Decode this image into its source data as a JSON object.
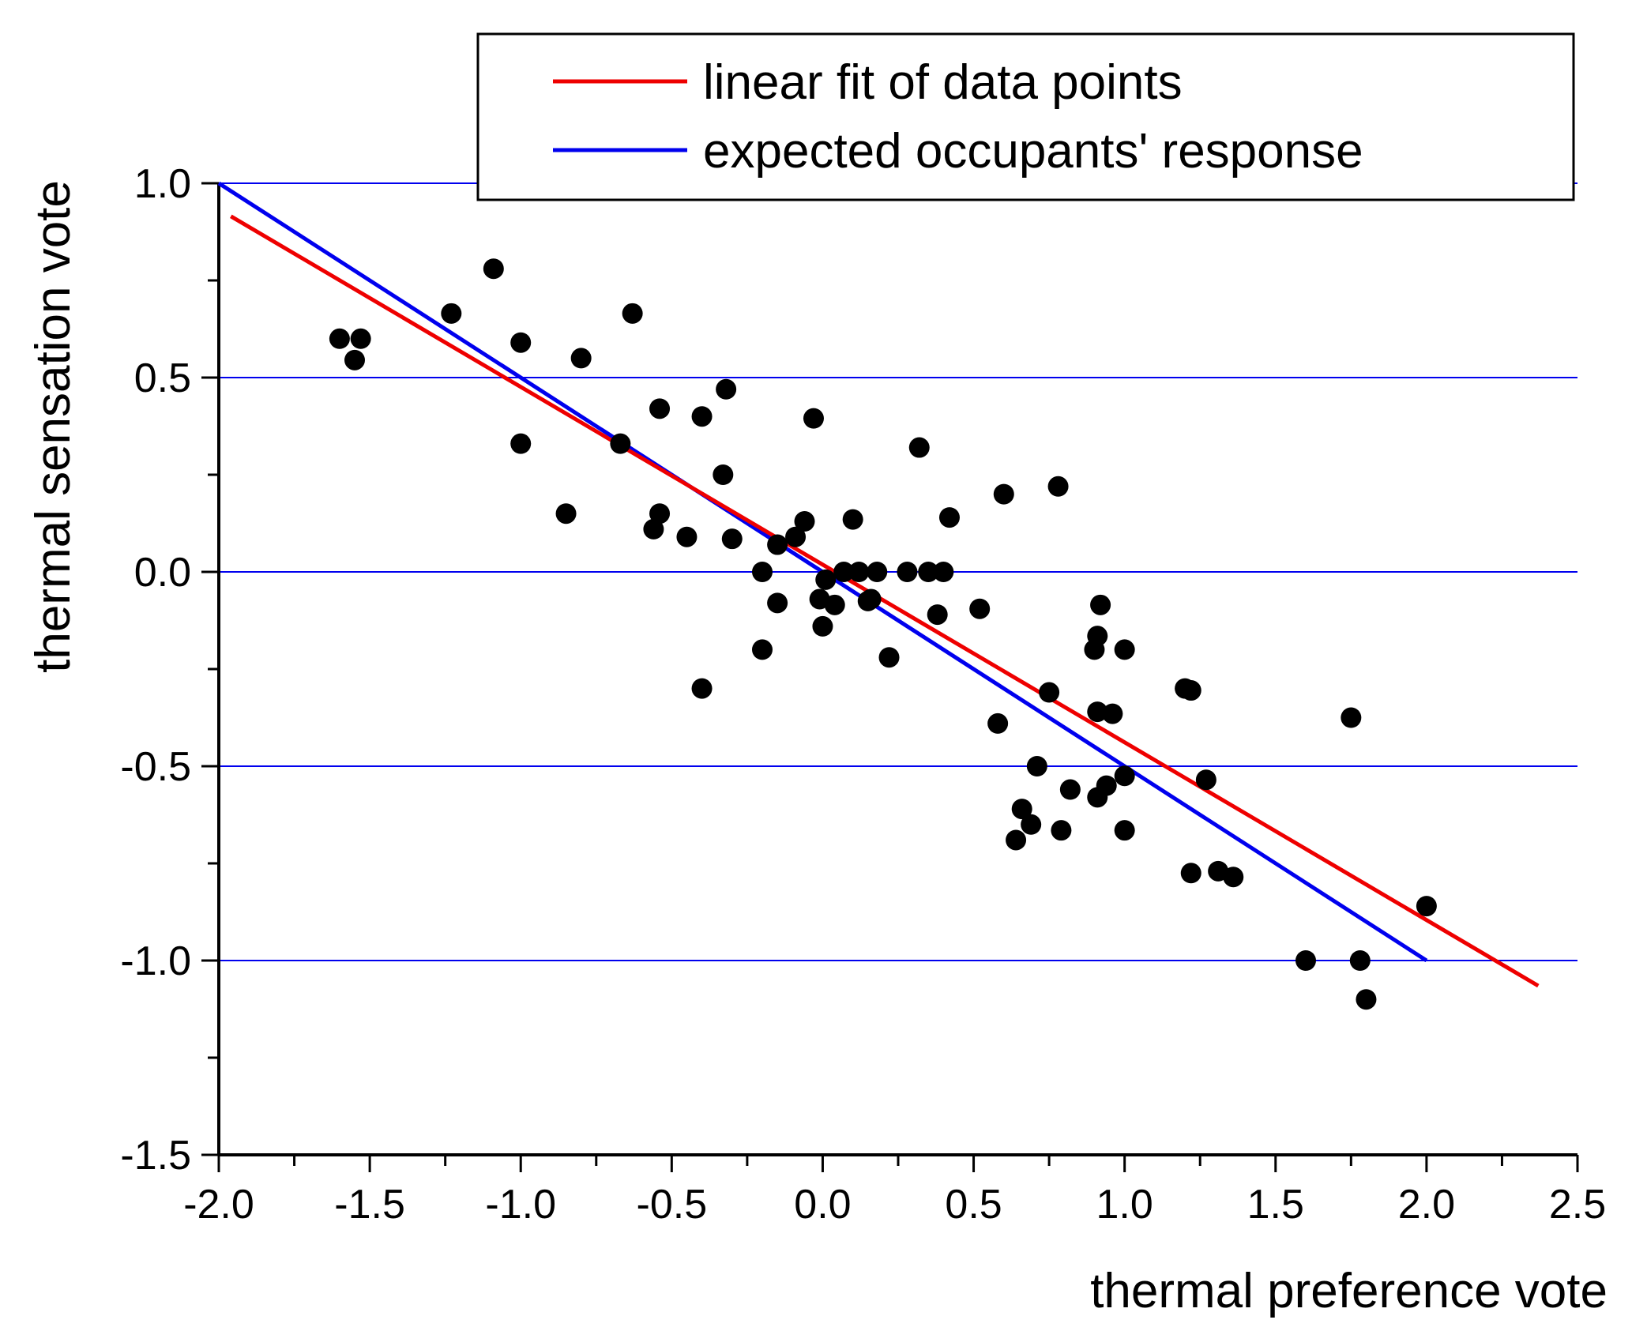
{
  "chart_data": {
    "type": "scatter",
    "xlabel": "thermal preference vote",
    "ylabel": "thermal sensation vote",
    "xlim": [
      -2.0,
      2.5
    ],
    "ylim": [
      -1.5,
      1.0
    ],
    "x_ticks": [
      "-2.0",
      "-1.5",
      "-1.0",
      "-0.5",
      "0.0",
      "0.5",
      "1.0",
      "1.5",
      "2.0",
      "2.5"
    ],
    "y_ticks": [
      "1.0",
      "0.5",
      "0.0",
      "-0.5",
      "-1.0",
      "-1.5"
    ],
    "gridlines_y": [
      1.0,
      0.5,
      0.0,
      -0.5,
      -1.0
    ],
    "grid_color": "#0000ee",
    "legend_position": "top-right",
    "series": [
      {
        "name": "data points",
        "kind": "scatter",
        "color": "#000000",
        "x": [
          -1.6,
          -1.55,
          -1.53,
          -1.23,
          -1.09,
          -1.0,
          -1.0,
          -0.85,
          -0.8,
          -0.67,
          -0.63,
          -0.56,
          -0.54,
          -0.54,
          -0.45,
          -0.4,
          -0.4,
          -0.33,
          -0.32,
          -0.3,
          -0.2,
          -0.2,
          -0.15,
          -0.15,
          -0.09,
          -0.06,
          -0.03,
          -0.01,
          0.0,
          0.01,
          0.04,
          0.07,
          0.1,
          0.12,
          0.15,
          0.16,
          0.18,
          0.22,
          0.28,
          0.32,
          0.35,
          0.38,
          0.4,
          0.42,
          0.52,
          0.58,
          0.6,
          0.64,
          0.66,
          0.69,
          0.71,
          0.75,
          0.78,
          0.79,
          0.82,
          0.9,
          0.91,
          0.91,
          0.91,
          0.92,
          0.94,
          0.96,
          1.0,
          1.0,
          1.0,
          1.2,
          1.22,
          1.22,
          1.27,
          1.31,
          1.36,
          1.6,
          1.75,
          1.78,
          1.8,
          2.0
        ],
        "y": [
          0.6,
          0.545,
          0.6,
          0.665,
          0.78,
          0.59,
          0.33,
          0.15,
          0.55,
          0.33,
          0.665,
          0.11,
          0.15,
          0.42,
          0.09,
          0.4,
          -0.3,
          0.25,
          0.47,
          0.085,
          0.0,
          -0.2,
          -0.08,
          0.07,
          0.09,
          0.13,
          0.395,
          -0.07,
          -0.14,
          -0.02,
          -0.085,
          0.0,
          0.135,
          0.0,
          -0.075,
          -0.07,
          0.0,
          -0.22,
          0.0,
          0.32,
          0.0,
          -0.11,
          0.0,
          0.14,
          -0.095,
          -0.39,
          0.2,
          -0.69,
          -0.61,
          -0.65,
          -0.5,
          -0.31,
          0.22,
          -0.665,
          -0.56,
          -0.2,
          -0.36,
          -0.58,
          -0.165,
          -0.085,
          -0.55,
          -0.365,
          -0.2,
          -0.525,
          -0.665,
          -0.3,
          -0.305,
          -0.775,
          -0.535,
          -0.77,
          -0.785,
          -1.0,
          -0.375,
          -1.0,
          -1.1,
          -0.86
        ]
      },
      {
        "name": "linear fit of data points",
        "kind": "line",
        "color": "#ee0000",
        "x": [
          -1.96,
          2.37
        ],
        "y": [
          0.915,
          -1.065
        ]
      },
      {
        "name": "expected occupants' response",
        "kind": "line",
        "color": "#0000ee",
        "x": [
          -2.0,
          2.0
        ],
        "y": [
          1.0,
          -1.0
        ]
      }
    ]
  }
}
